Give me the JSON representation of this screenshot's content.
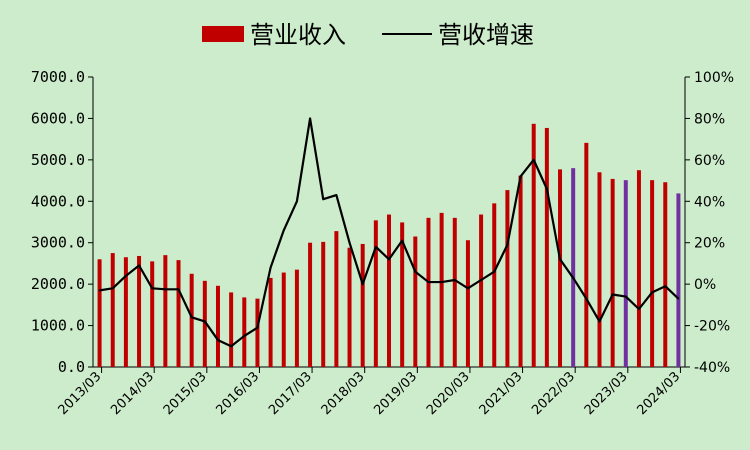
{
  "chart_data": {
    "type": "bar",
    "legend": {
      "position": "top-center",
      "items": [
        {
          "label": "营业收入",
          "kind": "bar",
          "color": "#c00000"
        },
        {
          "label": "营收增速",
          "kind": "line",
          "color": "#000000"
        }
      ]
    },
    "x_tick_labels": [
      "2013/03",
      "2014/03",
      "2015/03",
      "2016/03",
      "2017/03",
      "2018/03",
      "2019/03",
      "2020/03",
      "2021/03",
      "2022/03",
      "2023/03",
      "2024/03"
    ],
    "y_left": {
      "min": 0,
      "max": 7000,
      "step": 1000,
      "tick_labels": [
        "0.0",
        "1000.0",
        "2000.0",
        "3000.0",
        "4000.0",
        "5000.0",
        "6000.0",
        "7000.0"
      ]
    },
    "y_right": {
      "min": -40,
      "max": 100,
      "step": 20,
      "unit": "%",
      "tick_labels": [
        "-40%",
        "-20%",
        "0%",
        "20%",
        "40%",
        "60%",
        "80%",
        "100%"
      ]
    },
    "grid": false,
    "categories": [
      "2013Q1",
      "2013Q2",
      "2013Q3",
      "2013Q4",
      "2014Q1",
      "2014Q2",
      "2014Q3",
      "2014Q4",
      "2015Q1",
      "2015Q2",
      "2015Q3",
      "2015Q4",
      "2016Q1",
      "2016Q2",
      "2016Q3",
      "2016Q4",
      "2017Q1",
      "2017Q2",
      "2017Q3",
      "2017Q4",
      "2018Q1",
      "2018Q2",
      "2018Q3",
      "2018Q4",
      "2019Q1",
      "2019Q2",
      "2019Q3",
      "2019Q4",
      "2020Q1",
      "2020Q2",
      "2020Q3",
      "2020Q4",
      "2021Q1",
      "2021Q2",
      "2021Q3",
      "2021Q4",
      "2022Q1",
      "2022Q2",
      "2022Q3",
      "2022Q4",
      "2023Q1",
      "2023Q2",
      "2023Q3",
      "2023Q4",
      "2024Q1"
    ],
    "series": [
      {
        "name": "营业收入",
        "type": "bar",
        "axis": "left",
        "color": "#c00000",
        "highlight_color": "#7030a0",
        "highlight_indices": [
          36,
          40,
          44
        ],
        "values": [
          2600,
          2750,
          2650,
          2680,
          2550,
          2700,
          2580,
          2250,
          2080,
          1960,
          1800,
          1680,
          1650,
          2150,
          2280,
          2350,
          3000,
          3020,
          3280,
          2880,
          2970,
          3540,
          3680,
          3490,
          3150,
          3600,
          3720,
          3600,
          3060,
          3680,
          3950,
          4270,
          4620,
          5870,
          5770,
          4770,
          4800,
          5410,
          4700,
          4540,
          4510,
          4750,
          4510,
          4460,
          4190
        ]
      },
      {
        "name": "营收增速",
        "type": "line",
        "axis": "right",
        "color": "#000000",
        "values": [
          -3,
          -2,
          4,
          9,
          -2,
          -2.5,
          -2.5,
          -16,
          -18,
          -27,
          -30,
          -25,
          -21,
          8,
          26,
          40,
          80,
          41,
          43,
          20,
          0,
          18,
          12,
          21,
          6,
          1,
          1,
          2,
          -2,
          2,
          6,
          19,
          52,
          60,
          46,
          12,
          3,
          -7,
          -18,
          -5,
          -6,
          -12,
          -4,
          -1,
          -7
        ]
      }
    ]
  }
}
